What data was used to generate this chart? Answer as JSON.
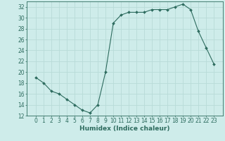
{
  "x": [
    0,
    1,
    2,
    3,
    4,
    5,
    6,
    7,
    8,
    9,
    10,
    11,
    12,
    13,
    14,
    15,
    16,
    17,
    18,
    19,
    20,
    21,
    22,
    23
  ],
  "y": [
    19,
    18,
    16.5,
    16,
    15,
    14,
    13,
    12.5,
    14,
    20,
    29,
    30.5,
    31,
    31,
    31,
    31.5,
    31.5,
    31.5,
    32,
    32.5,
    31.5,
    27.5,
    24.5,
    21.5
  ],
  "line_color": "#2d6b5e",
  "marker": "D",
  "marker_size": 2,
  "bg_color": "#ceecea",
  "grid_color": "#b8dbd8",
  "xlabel": "Humidex (Indice chaleur)",
  "ylim": [
    12,
    33
  ],
  "yticks": [
    12,
    14,
    16,
    18,
    20,
    22,
    24,
    26,
    28,
    30,
    32
  ],
  "xticks": [
    0,
    1,
    2,
    3,
    4,
    5,
    6,
    7,
    8,
    9,
    10,
    11,
    12,
    13,
    14,
    15,
    16,
    17,
    18,
    19,
    20,
    21,
    22,
    23
  ],
  "label_fontsize": 6.5,
  "tick_fontsize": 5.5
}
